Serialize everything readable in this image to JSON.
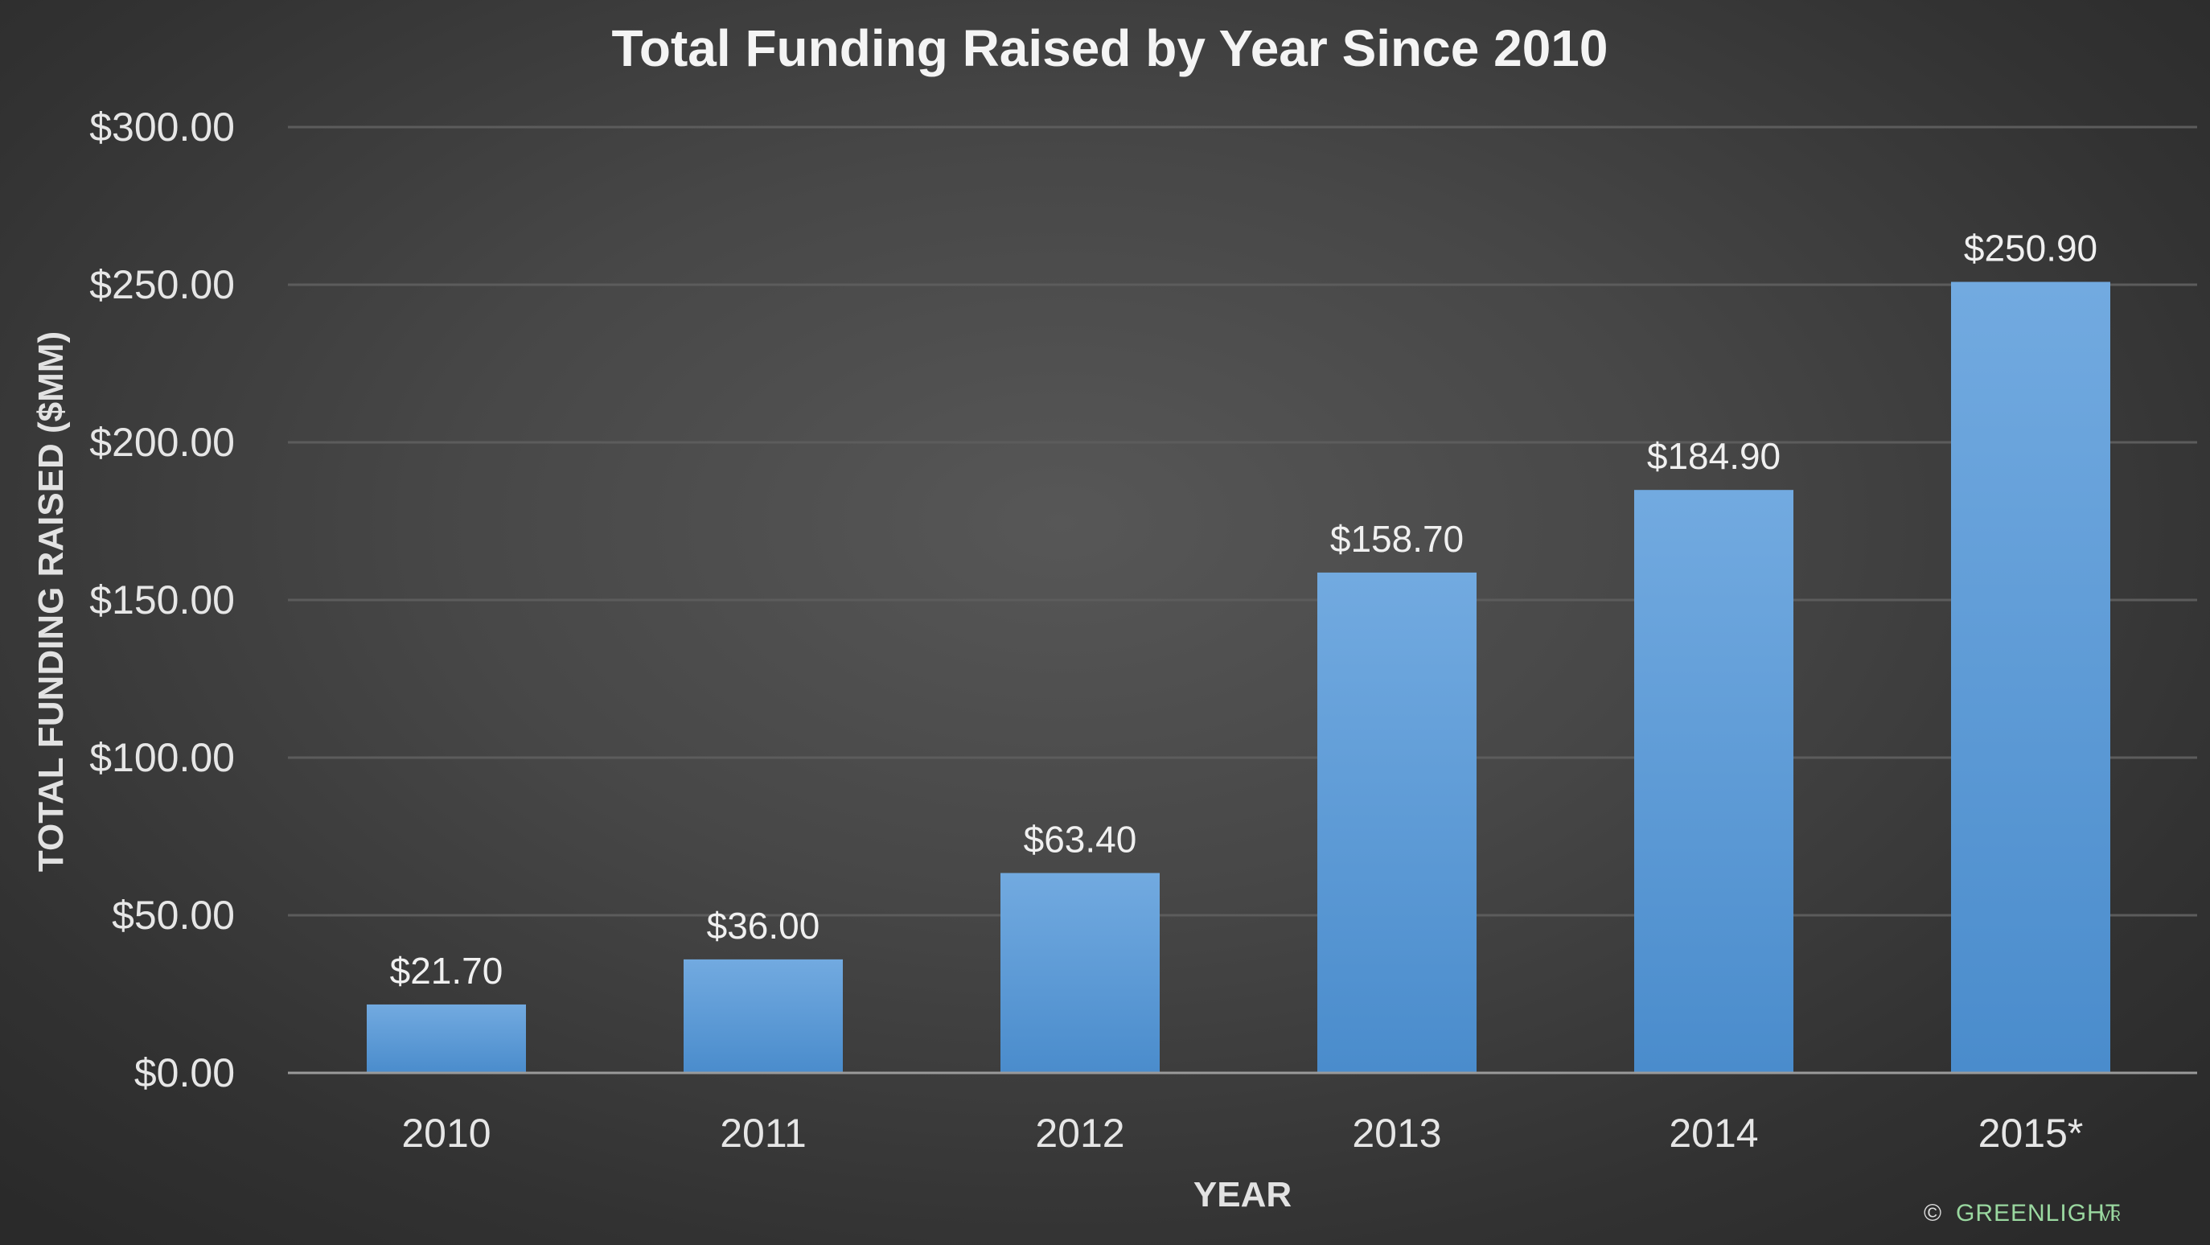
{
  "chart_data": {
    "type": "bar",
    "title": "Total Funding Raised by Year Since 2010",
    "xlabel": "YEAR",
    "ylabel": "TOTAL FUNDING RAISED ($MM)",
    "categories": [
      "2010",
      "2011",
      "2012",
      "2013",
      "2014",
      "2015*"
    ],
    "values": [
      21.7,
      36.0,
      63.4,
      158.7,
      184.9,
      250.9
    ],
    "data_labels": [
      "$21.70",
      "$36.00",
      "$63.40",
      "$158.70",
      "$184.90",
      "$250.90"
    ],
    "yticks": [
      0,
      50,
      100,
      150,
      200,
      250,
      300
    ],
    "ytick_labels": [
      "$0.00",
      "$50.00",
      "$100.00",
      "$150.00",
      "$200.00",
      "$250.00",
      "$300.00"
    ],
    "ylim": [
      0,
      300
    ],
    "grid": true,
    "legend": "none",
    "bar_color": "#5b9bd5"
  },
  "watermark": {
    "symbol": "©",
    "brand": "GREENLIGHT",
    "brand_suffix": "VR"
  }
}
